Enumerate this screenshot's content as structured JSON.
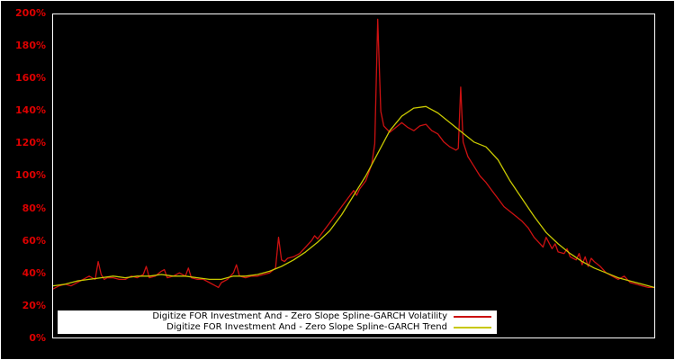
{
  "figure": {
    "background": "#000000",
    "outer_border_color": "#ffffff",
    "plot_border_color": "#ffffff",
    "axis_label_color": "#dd0000"
  },
  "chart_data": {
    "type": "line",
    "title": "",
    "xlabel": "",
    "ylabel": "",
    "xlim": [
      0,
      1
    ],
    "ylim": [
      0,
      200
    ],
    "grid": false,
    "background": "#000000",
    "legend_position": "bottom-center-inside",
    "legend_background": "#ffffff",
    "legend_text_color": "#000000",
    "y_ticks": [
      "0%",
      "20%",
      "40%",
      "60%",
      "80%",
      "100%",
      "120%",
      "140%",
      "160%",
      "180%",
      "200%"
    ],
    "series": [
      {
        "name": "Digitize FOR Investment And - Zero Slope Spline-GARCH Volatility",
        "color": "#cc1111",
        "x": [
          0,
          0.01,
          0.02,
          0.03,
          0.04,
          0.05,
          0.06,
          0.07,
          0.075,
          0.08,
          0.085,
          0.09,
          0.1,
          0.11,
          0.12,
          0.13,
          0.14,
          0.15,
          0.155,
          0.16,
          0.17,
          0.18,
          0.185,
          0.19,
          0.2,
          0.21,
          0.22,
          0.225,
          0.23,
          0.24,
          0.25,
          0.26,
          0.27,
          0.275,
          0.28,
          0.29,
          0.3,
          0.305,
          0.31,
          0.32,
          0.33,
          0.34,
          0.35,
          0.36,
          0.37,
          0.375,
          0.38,
          0.385,
          0.39,
          0.4,
          0.41,
          0.42,
          0.43,
          0.435,
          0.44,
          0.45,
          0.46,
          0.47,
          0.48,
          0.49,
          0.5,
          0.505,
          0.51,
          0.52,
          0.53,
          0.535,
          0.54,
          0.545,
          0.55,
          0.56,
          0.57,
          0.58,
          0.59,
          0.6,
          0.61,
          0.62,
          0.63,
          0.64,
          0.65,
          0.66,
          0.67,
          0.674,
          0.678,
          0.682,
          0.69,
          0.7,
          0.71,
          0.72,
          0.73,
          0.74,
          0.75,
          0.76,
          0.77,
          0.78,
          0.79,
          0.8,
          0.81,
          0.815,
          0.82,
          0.83,
          0.835,
          0.84,
          0.85,
          0.855,
          0.86,
          0.87,
          0.875,
          0.88,
          0.885,
          0.89,
          0.895,
          0.9,
          0.91,
          0.92,
          0.93,
          0.94,
          0.95,
          0.955,
          0.96,
          0.97,
          0.98,
          0.99,
          1.0
        ],
        "y": [
          30,
          32,
          33,
          32,
          34,
          36,
          38,
          36,
          47,
          39,
          36,
          37,
          37,
          36,
          36,
          38,
          37,
          39,
          44,
          37,
          38,
          41,
          42,
          37,
          38,
          40,
          38,
          43,
          37,
          36,
          36,
          34,
          32,
          31,
          34,
          36,
          40,
          45,
          38,
          37,
          38,
          38,
          39,
          40,
          43,
          62,
          48,
          47,
          49,
          50,
          52,
          56,
          60,
          63,
          61,
          66,
          71,
          76,
          81,
          86,
          91,
          88,
          92,
          97,
          107,
          120,
          197,
          140,
          131,
          127,
          130,
          133,
          130,
          128,
          131,
          132,
          128,
          126,
          121,
          118,
          116,
          117,
          155,
          121,
          112,
          106,
          100,
          96,
          91,
          86,
          81,
          78,
          75,
          72,
          68,
          62,
          58,
          56,
          62,
          55,
          58,
          53,
          52,
          55,
          50,
          48,
          52,
          45,
          50,
          44,
          49,
          47,
          44,
          40,
          38,
          36,
          38,
          36,
          34,
          33,
          32,
          31,
          31
        ]
      },
      {
        "name": "Digitize FOR Investment And - Zero Slope Spline-GARCH Trend",
        "color": "#c8c800",
        "x": [
          0,
          0.02,
          0.04,
          0.06,
          0.08,
          0.1,
          0.12,
          0.14,
          0.16,
          0.18,
          0.2,
          0.22,
          0.24,
          0.26,
          0.28,
          0.3,
          0.32,
          0.34,
          0.36,
          0.38,
          0.4,
          0.42,
          0.44,
          0.46,
          0.48,
          0.5,
          0.52,
          0.54,
          0.56,
          0.58,
          0.6,
          0.62,
          0.64,
          0.66,
          0.68,
          0.7,
          0.72,
          0.74,
          0.76,
          0.78,
          0.8,
          0.82,
          0.84,
          0.86,
          0.88,
          0.9,
          0.92,
          0.94,
          0.96,
          0.98,
          1.0
        ],
        "y": [
          32,
          33,
          35,
          36,
          37,
          38,
          37,
          38,
          38,
          39,
          38,
          38,
          37,
          36,
          36,
          38,
          38,
          39,
          41,
          44,
          48,
          53,
          59,
          66,
          76,
          88,
          100,
          114,
          128,
          137,
          142,
          143,
          139,
          133,
          127,
          121,
          118,
          110,
          97,
          86,
          75,
          65,
          58,
          52,
          47,
          43,
          40,
          37,
          35,
          33,
          31
        ]
      }
    ]
  }
}
